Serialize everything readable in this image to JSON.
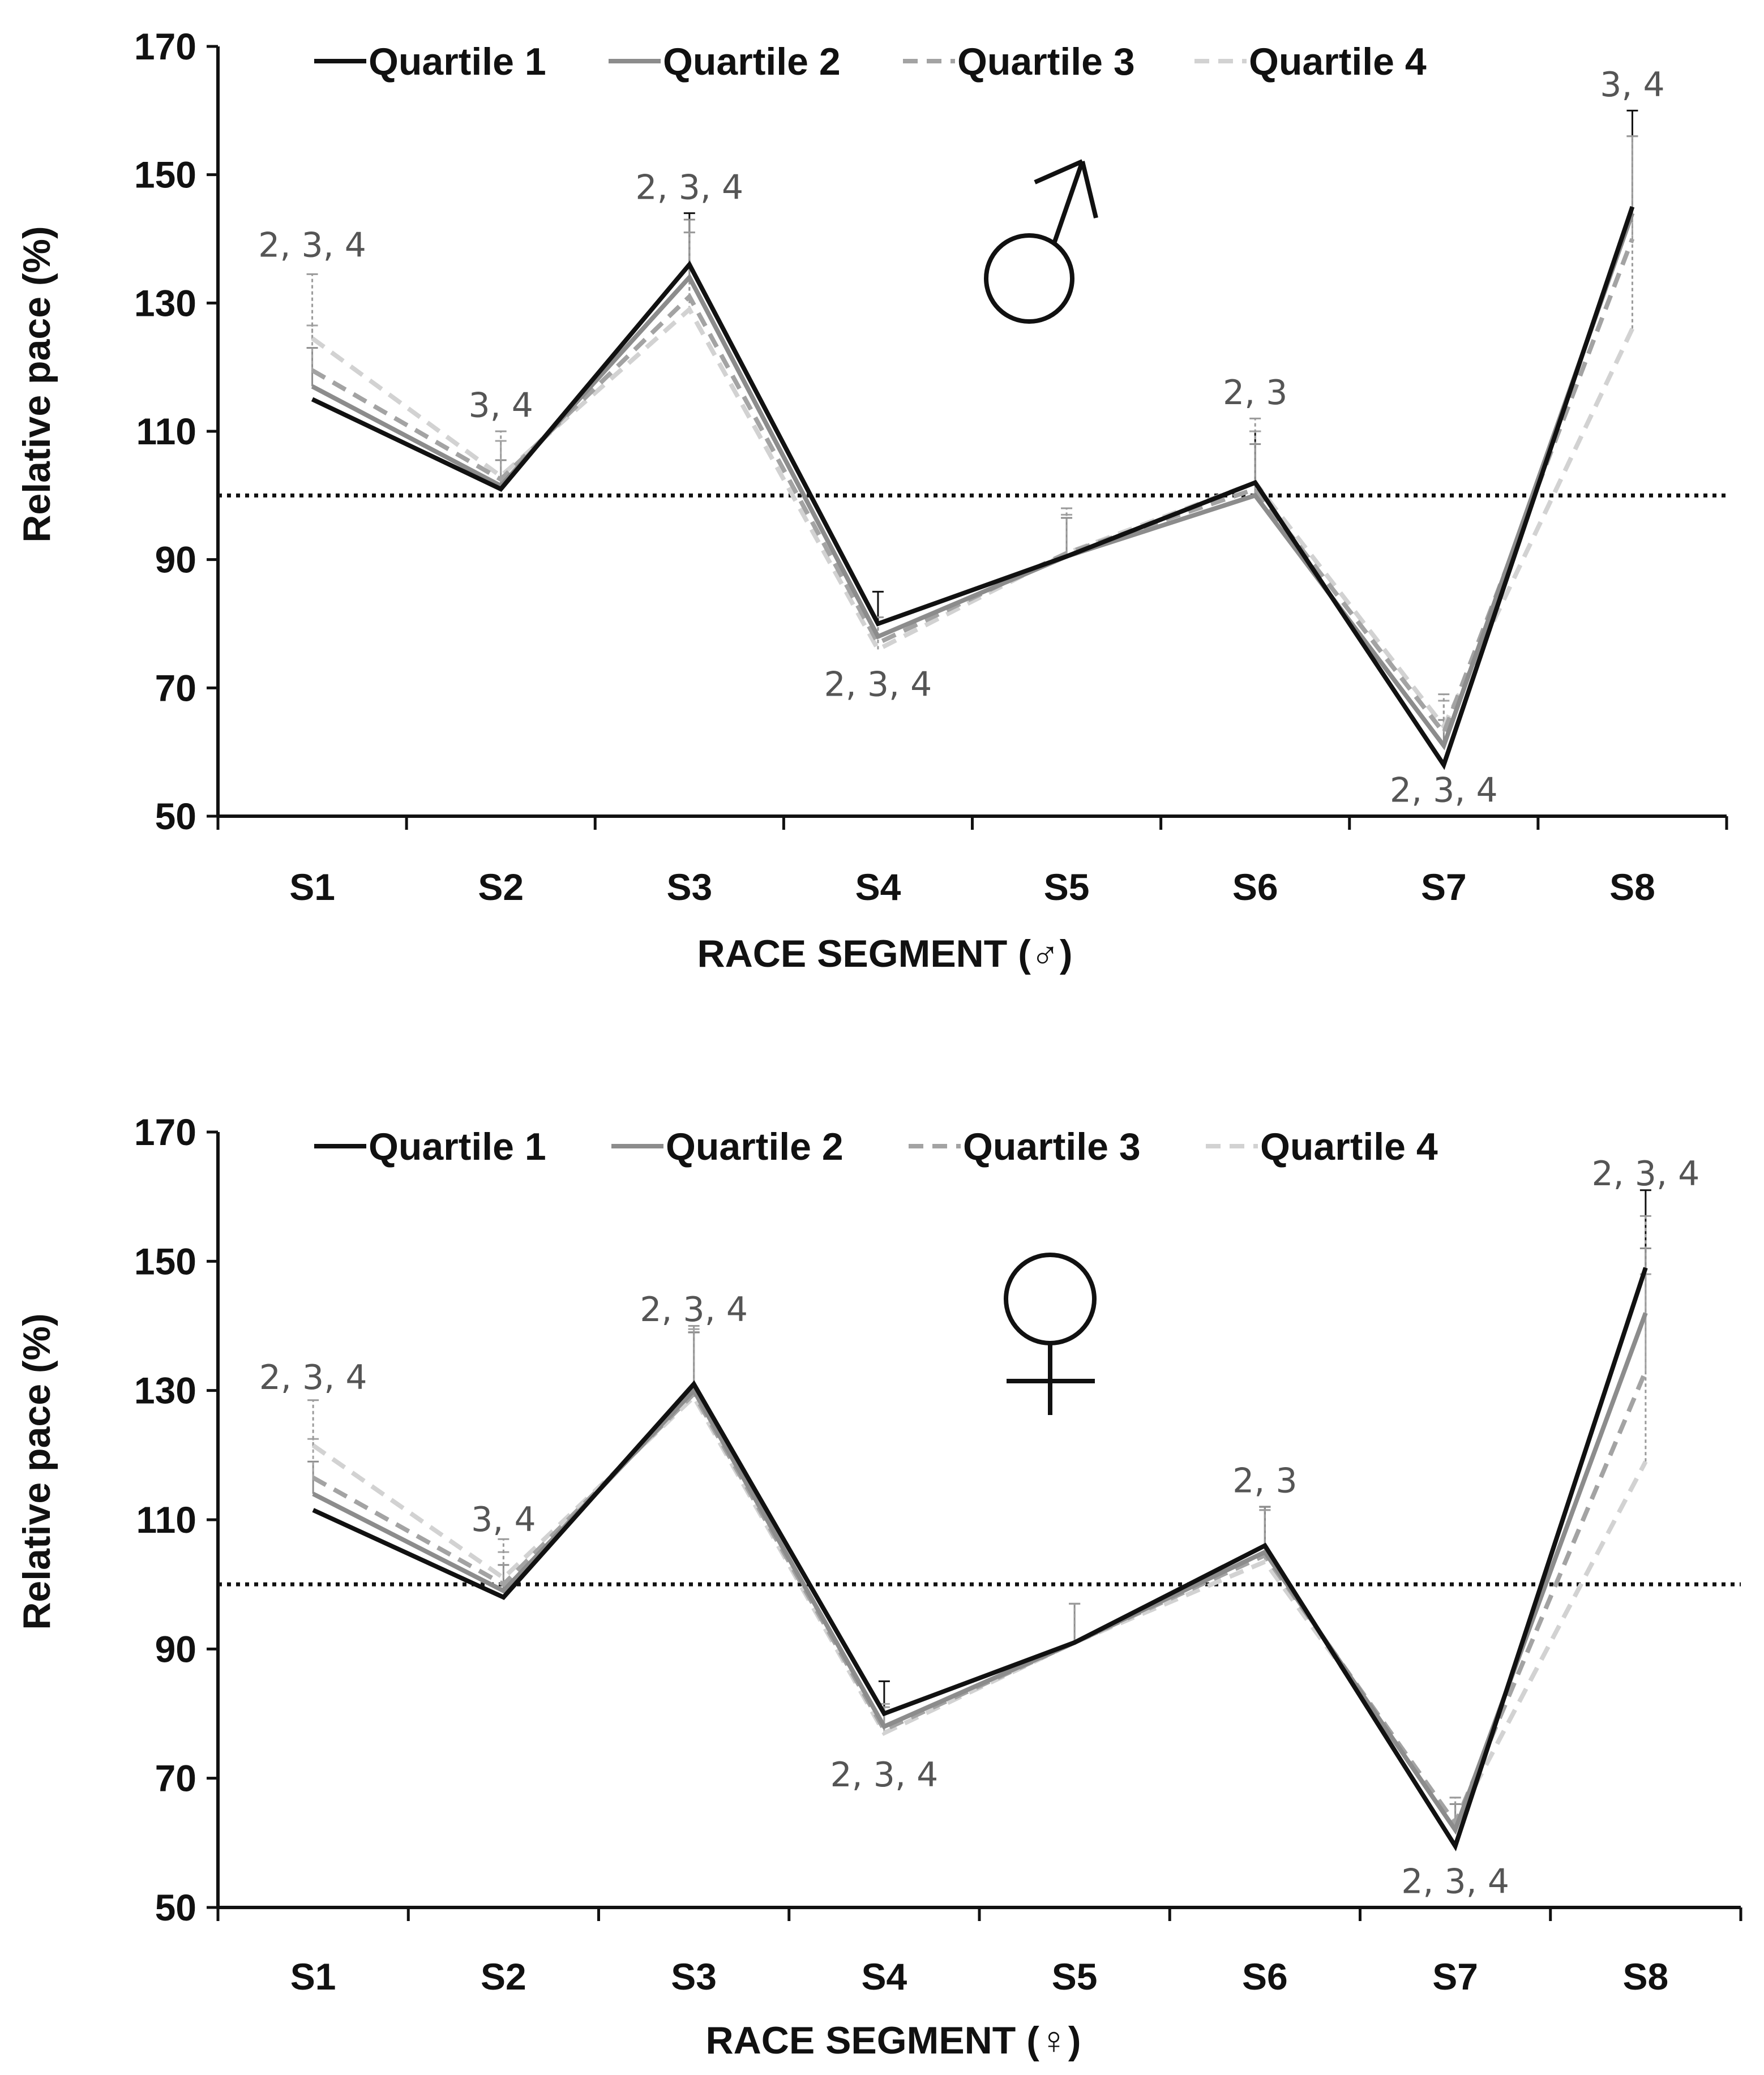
{
  "chart_data": [
    {
      "type": "line",
      "panel": "male",
      "symbol": "♂",
      "xlabel": "RACE SEGMENT (♂)",
      "ylabel": "Relative pace (%)",
      "categories": [
        "S1",
        "S2",
        "S3",
        "S4",
        "S5",
        "S6",
        "S7",
        "S8"
      ],
      "ylim": [
        50,
        170
      ],
      "yticks": [
        50,
        70,
        90,
        110,
        130,
        150,
        170
      ],
      "reference_line": 100,
      "legend_position": "top",
      "series": [
        {
          "name": "Quartile 1",
          "color": "#111111",
          "dash": "solid",
          "values": [
            115,
            101,
            136,
            80,
            90.5,
            102,
            58,
            145
          ],
          "errors": [
            0,
            0,
            8,
            5,
            0,
            8,
            0,
            15
          ]
        },
        {
          "name": "Quartile 2",
          "color": "#8c8c8c",
          "dash": "solid",
          "values": [
            117,
            101.5,
            134,
            78,
            90.5,
            100,
            61,
            144
          ],
          "errors": [
            6,
            4,
            9,
            0,
            6,
            8,
            4,
            12
          ]
        },
        {
          "name": "Quartile 3",
          "color": "#a3a3a3",
          "dash": "dashed",
          "values": [
            119.5,
            102.5,
            131,
            77,
            91,
            101,
            63,
            140
          ],
          "errors": [
            7,
            6,
            10,
            4,
            6,
            9,
            5,
            16
          ]
        },
        {
          "name": "Quartile 4",
          "color": "#d2d2d2",
          "dash": "dashed",
          "values": [
            124.5,
            103,
            129,
            76,
            91,
            102,
            64,
            126
          ],
          "errors": [
            10,
            7,
            12,
            5,
            7,
            10,
            5,
            30
          ]
        }
      ],
      "annotations": [
        {
          "category": "S1",
          "value": 139,
          "text": "2, 3, 4"
        },
        {
          "category": "S2",
          "value": 114,
          "text": "3, 4"
        },
        {
          "category": "S3",
          "value": 148,
          "text": "2, 3, 4"
        },
        {
          "category": "S4",
          "value": 70.5,
          "text": "2, 3, 4"
        },
        {
          "category": "S6",
          "value": 116,
          "text": "2, 3"
        },
        {
          "category": "S7",
          "value": 54,
          "text": "2, 3, 4"
        },
        {
          "category": "S8",
          "value": 164,
          "text": "3, 4"
        }
      ]
    },
    {
      "type": "line",
      "panel": "female",
      "symbol": "♀",
      "xlabel": "RACE SEGMENT (♀)",
      "ylabel": "Relative pace (%)",
      "categories": [
        "S1",
        "S2",
        "S3",
        "S4",
        "S5",
        "S6",
        "S7",
        "S8"
      ],
      "ylim": [
        50,
        170
      ],
      "yticks": [
        50,
        70,
        90,
        110,
        130,
        150,
        170
      ],
      "reference_line": 100,
      "legend_position": "top",
      "series": [
        {
          "name": "Quartile 1",
          "color": "#111111",
          "dash": "solid",
          "values": [
            111.5,
            98,
            131,
            80,
            91,
            106,
            59.5,
            149
          ],
          "errors": [
            0,
            0,
            8,
            5,
            0,
            6,
            0,
            12
          ]
        },
        {
          "name": "Quartile 2",
          "color": "#8c8c8c",
          "dash": "solid",
          "values": [
            114,
            99,
            130,
            78,
            91,
            105,
            62,
            142
          ],
          "errors": [
            5,
            4,
            9,
            0,
            6,
            7,
            4,
            10
          ]
        },
        {
          "name": "Quartile 3",
          "color": "#a3a3a3",
          "dash": "dashed",
          "values": [
            116.5,
            100,
            129.5,
            77.5,
            91,
            104.5,
            63,
            133
          ],
          "errors": [
            6,
            5,
            10,
            4,
            6,
            7,
            4,
            15
          ]
        },
        {
          "name": "Quartile 4",
          "color": "#d2d2d2",
          "dash": "dashed",
          "values": [
            121.5,
            101,
            129,
            77,
            91,
            103.5,
            63,
            119
          ],
          "errors": [
            7,
            6,
            11,
            4,
            6,
            8,
            4,
            38
          ]
        }
      ],
      "annotations": [
        {
          "category": "S1",
          "value": 132,
          "text": "2, 3, 4"
        },
        {
          "category": "S2",
          "value": 110,
          "text": "3, 4"
        },
        {
          "category": "S3",
          "value": 142.5,
          "text": "2, 3, 4"
        },
        {
          "category": "S4",
          "value": 70.5,
          "text": "2, 3, 4"
        },
        {
          "category": "S6",
          "value": 116,
          "text": "2, 3"
        },
        {
          "category": "S7",
          "value": 54,
          "text": "2, 3, 4"
        },
        {
          "category": "S8",
          "value": 163.5,
          "text": "2, 3, 4"
        }
      ]
    }
  ]
}
